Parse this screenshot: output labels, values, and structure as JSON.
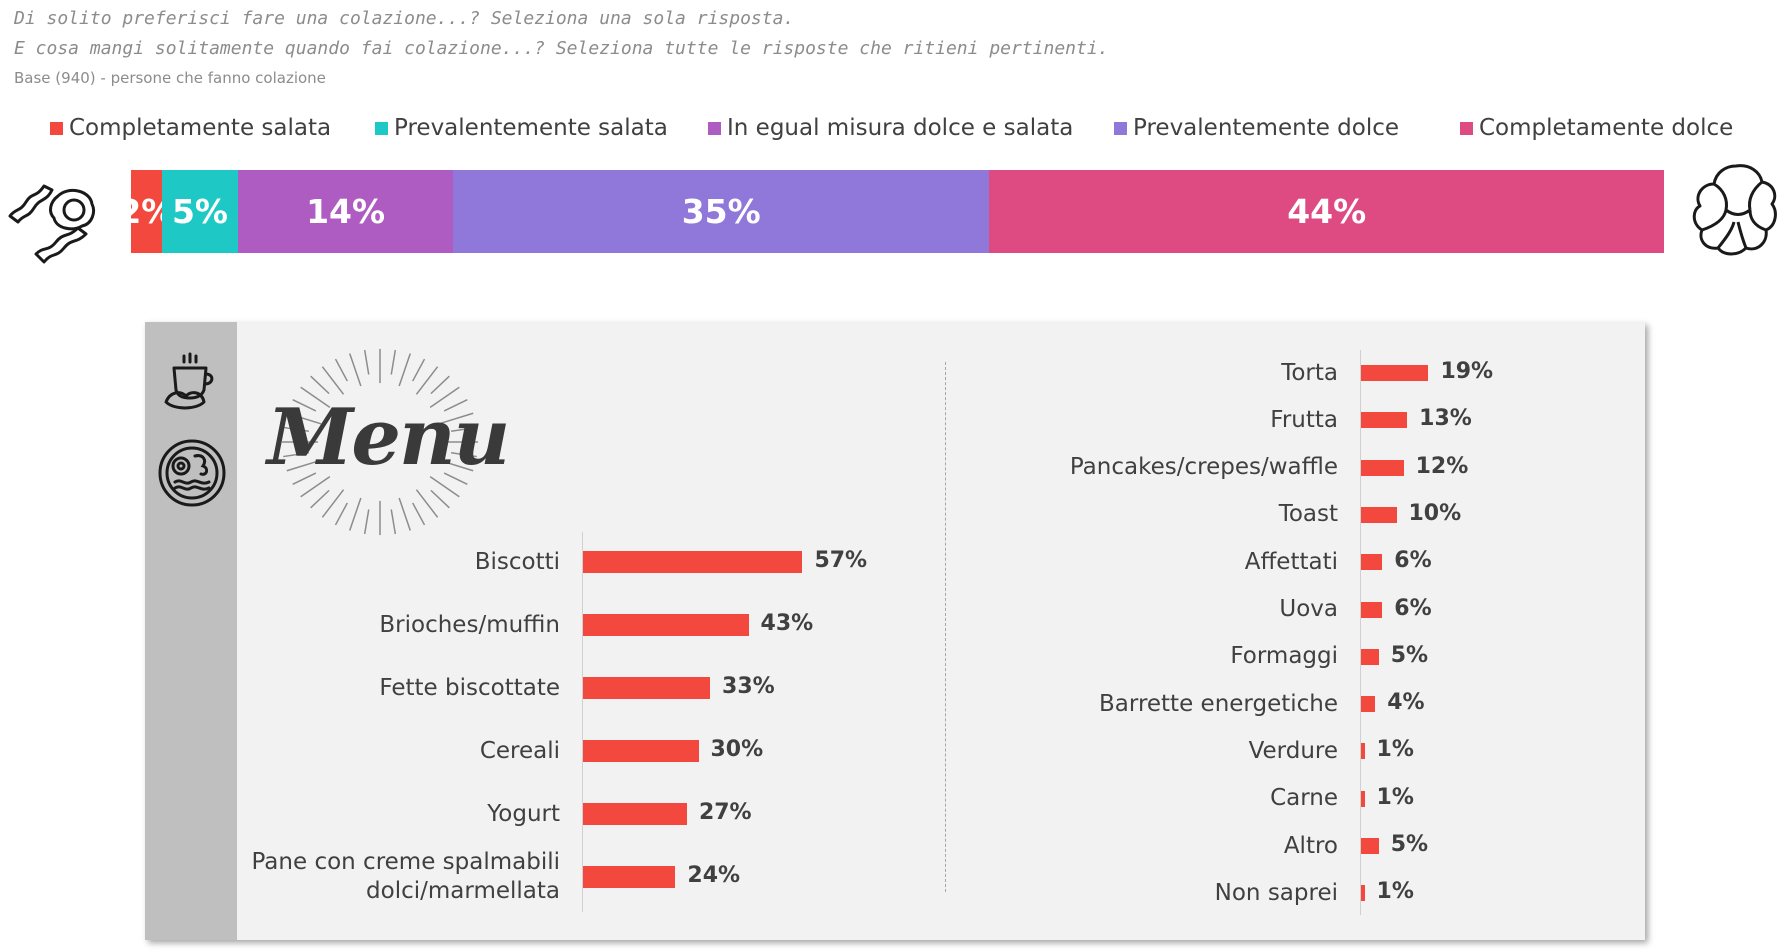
{
  "header": {
    "question1": "Di solito preferisci fare una colazione...? Seleziona una sola risposta.",
    "question2": "E cosa mangi solitamente quando fai colazione...? Seleziona tutte le risposte che ritieni pertinenti.",
    "base": "Base (940) - persone che fanno colazione"
  },
  "menu_logo_text": "Menu",
  "icons": [
    "bacon-egg-icon",
    "croissant-icon",
    "coffee-croissant-icon",
    "breakfast-plate-icon",
    "menu-logo-icon"
  ],
  "chart_data": [
    {
      "type": "bar",
      "stacked": true,
      "orientation": "horizontal",
      "series": [
        {
          "name": "Completamente salata",
          "value": 2,
          "label": "2%",
          "color": "#f2483d"
        },
        {
          "name": "Prevalentemente salata",
          "value": 5,
          "label": "5%",
          "color": "#1ec8c5"
        },
        {
          "name": "In egual misura dolce e salata",
          "value": 14,
          "label": "14%",
          "color": "#ae5cc2"
        },
        {
          "name": "Prevalentemente dolce",
          "value": 35,
          "label": "35%",
          "color": "#8f78d9"
        },
        {
          "name": "Completamente dolce",
          "value": 44,
          "label": "44%",
          "color": "#de4a82"
        }
      ],
      "legend": "top"
    },
    {
      "type": "bar",
      "orientation": "horizontal",
      "color": "#f2483d",
      "categories": [
        "Biscotti",
        "Brioches/muffin",
        "Fette biscottate",
        "Cereali",
        "Yogurt",
        "Pane con creme spalmabili dolci/marmellata"
      ],
      "display_categories": [
        [
          "Biscotti"
        ],
        [
          "Brioches/muffin"
        ],
        [
          "Fette biscottate"
        ],
        [
          "Cereali"
        ],
        [
          "Yogurt"
        ],
        [
          "Pane con creme spalmabili",
          "dolci/marmellata"
        ]
      ],
      "values": [
        57,
        43,
        33,
        30,
        27,
        24
      ],
      "labels": [
        "57%",
        "43%",
        "33%",
        "30%",
        "27%",
        "24%"
      ]
    },
    {
      "type": "bar",
      "orientation": "horizontal",
      "color": "#f2483d",
      "categories": [
        "Torta",
        "Frutta",
        "Pancakes/crepes/waffle",
        "Toast",
        "Affettati",
        "Uova",
        "Formaggi",
        "Barrette energetiche",
        "Verdure",
        "Carne",
        "Altro",
        "Non saprei"
      ],
      "values": [
        19,
        13,
        12,
        10,
        6,
        6,
        5,
        4,
        1,
        1,
        5,
        1
      ],
      "labels": [
        "19%",
        "13%",
        "12%",
        "10%",
        "6%",
        "6%",
        "5%",
        "4%",
        "1%",
        "1%",
        "5%",
        "1%"
      ]
    }
  ]
}
